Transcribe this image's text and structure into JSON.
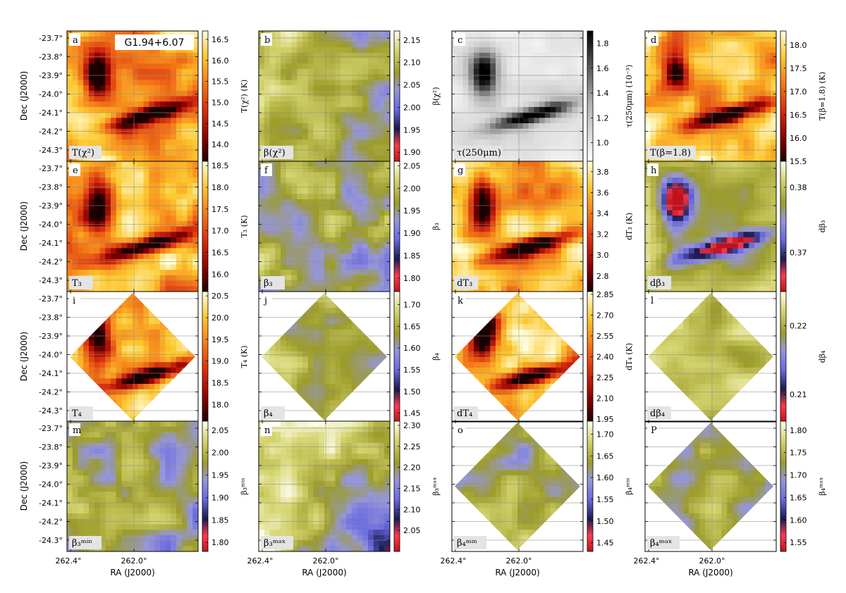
{
  "figure": {
    "source_label": "G1.94+6.07",
    "dec_axis_label": "Dec (J2000)",
    "ra_axis_label": "RA (J2000)",
    "dec_ticks": [
      "-23.7°",
      "-23.8°",
      "-23.9°",
      "-24.0°",
      "-24.1°",
      "-24.2°",
      "-24.3°"
    ],
    "ra_ticks": [
      "262.4°",
      "262.0°"
    ]
  },
  "chart_data": {
    "type": "heatmap",
    "x_axis": {
      "label": "RA (J2000)",
      "unit": "deg",
      "range": [
        262.4,
        261.7
      ],
      "ticks": [
        262.4,
        262.0
      ]
    },
    "y_axis": {
      "label": "Dec (J2000)",
      "unit": "deg",
      "range": [
        -24.37,
        -23.68
      ],
      "ticks": [
        -23.7,
        -23.8,
        -23.9,
        -24.0,
        -24.1,
        -24.2,
        -24.3
      ]
    },
    "panels": [
      {
        "letter": "a",
        "label": "T(χ²)",
        "cbar_label": "T(χ²) (K)",
        "cmap": "heat",
        "shape": "full",
        "ticks": [
          "16.5",
          "16.0",
          "15.5",
          "15.0",
          "14.5",
          "14.0"
        ],
        "range": [
          13.6,
          16.7
        ]
      },
      {
        "letter": "b",
        "label": "β(χ²)",
        "cbar_label": "β(χ²)",
        "cmap": "beta",
        "shape": "full",
        "ticks": [
          "2.15",
          "2.10",
          "2.05",
          "2.00",
          "1.95",
          "1.90"
        ],
        "range": [
          1.88,
          2.17
        ]
      },
      {
        "letter": "c",
        "label": "τ(250μm)",
        "cbar_label": "τ(250μm) (10⁻³)",
        "cmap": "gray",
        "shape": "full",
        "ticks": [
          "1.8",
          "1.6",
          "1.4",
          "1.2",
          "1.0"
        ],
        "range": [
          0.85,
          1.9
        ]
      },
      {
        "letter": "d",
        "label": "T(β=1.8)",
        "cbar_label": "T(β=1.8) (K)",
        "cmap": "heat",
        "shape": "full",
        "ticks": [
          "18.0",
          "17.5",
          "17.0",
          "16.5",
          "16.0",
          "15.5"
        ],
        "range": [
          15.5,
          18.3
        ]
      },
      {
        "letter": "e",
        "label": "T₃",
        "cbar_label": "T₃ (K)",
        "cmap": "heat",
        "shape": "full",
        "ticks": [
          "18.5",
          "18.0",
          "17.5",
          "17.0",
          "16.5",
          "16.0"
        ],
        "range": [
          15.6,
          18.6
        ]
      },
      {
        "letter": "f",
        "label": "β₃",
        "cbar_label": "β₃",
        "cmap": "beta",
        "shape": "full",
        "ticks": [
          "2.05",
          "2.00",
          "1.95",
          "1.90",
          "1.85",
          "1.80"
        ],
        "range": [
          1.77,
          2.06
        ]
      },
      {
        "letter": "g",
        "label": "dT₃",
        "cbar_label": "dT₃ (K)",
        "cmap": "heat",
        "shape": "full",
        "ticks": [
          "3.8",
          "3.6",
          "3.4",
          "3.2",
          "3.0",
          "2.8"
        ],
        "range": [
          2.65,
          3.9
        ]
      },
      {
        "letter": "h",
        "label": "dβ₃",
        "cbar_label": "dβ₃",
        "cmap": "beta",
        "shape": "full",
        "ticks": [
          "0.38",
          "0.37"
        ],
        "range": [
          0.364,
          0.384
        ]
      },
      {
        "letter": "i",
        "label": "T₄",
        "cbar_label": "T₄ (K)",
        "cmap": "heat",
        "shape": "diamond",
        "ticks": [
          "20.5",
          "20.0",
          "19.5",
          "19.0",
          "18.5",
          "18.0"
        ],
        "range": [
          17.6,
          20.6
        ]
      },
      {
        "letter": "j",
        "label": "β₄",
        "cbar_label": "β₄",
        "cmap": "beta",
        "shape": "diamond",
        "ticks": [
          "1.70",
          "1.65",
          "1.60",
          "1.55",
          "1.50",
          "1.45"
        ],
        "range": [
          1.43,
          1.73
        ]
      },
      {
        "letter": "k",
        "label": "dT₄",
        "cbar_label": "dT₄ (K)",
        "cmap": "heat",
        "shape": "diamond",
        "ticks": [
          "2.85",
          "2.70",
          "2.55",
          "2.40",
          "2.25",
          "2.10",
          "1.95"
        ],
        "range": [
          1.93,
          2.87
        ]
      },
      {
        "letter": "l",
        "label": "dβ₄",
        "cbar_label": "dβ₄",
        "cmap": "beta",
        "shape": "diamond",
        "ticks": [
          "0.22",
          "0.21"
        ],
        "range": [
          0.206,
          0.225
        ]
      },
      {
        "letter": "m",
        "label": "β₃ᵐⁱⁿ",
        "cbar_label": "β₃ᵐⁱⁿ",
        "cmap": "beta",
        "shape": "full",
        "ticks": [
          "2.05",
          "2.00",
          "1.95",
          "1.90",
          "1.85",
          "1.80"
        ],
        "range": [
          1.78,
          2.07
        ]
      },
      {
        "letter": "n",
        "label": "β₃ᵐᵃˣ",
        "cbar_label": "β₃ᵐᵃˣ",
        "cmap": "beta",
        "shape": "full",
        "ticks": [
          "2.30",
          "2.25",
          "2.20",
          "2.15",
          "2.10",
          "2.05"
        ],
        "range": [
          2.0,
          2.31
        ]
      },
      {
        "letter": "o",
        "label": "β₄ᵐⁱⁿ",
        "cbar_label": "β₄ᵐⁱⁿ",
        "cmap": "beta",
        "shape": "diamond",
        "ticks": [
          "1.70",
          "1.65",
          "1.60",
          "1.55",
          "1.50",
          "1.45"
        ],
        "range": [
          1.43,
          1.73
        ]
      },
      {
        "letter": "P",
        "label": "β₄ᵐᵃˣ",
        "cbar_label": "β₄ᵐᵃˣ",
        "cmap": "beta",
        "shape": "diamond",
        "ticks": [
          "1.80",
          "1.75",
          "1.70",
          "1.65",
          "1.60",
          "1.55"
        ],
        "range": [
          1.53,
          1.82
        ]
      }
    ]
  }
}
